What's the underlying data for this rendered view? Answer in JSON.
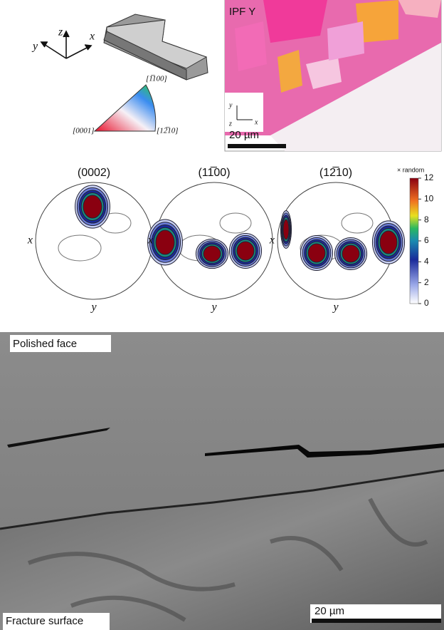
{
  "schematic": {
    "axes": [
      "z",
      "x",
      "y"
    ],
    "ipf_key": {
      "top": "[1̅100]",
      "left": "[0001]",
      "right": "[12̅10]"
    }
  },
  "ipf_map": {
    "title": "IPF Y",
    "axes": [
      "y",
      "z",
      "x"
    ],
    "scale_bar": "20 µm"
  },
  "pole_figures": [
    {
      "title": "(0002)",
      "x_label": "x",
      "y_label": "y"
    },
    {
      "title": "(11̅00)",
      "x_label": "x",
      "y_label": "y"
    },
    {
      "title": "(12̅10)",
      "x_label": "x",
      "y_label": "y"
    }
  ],
  "colorbar": {
    "label": "× random",
    "lim": [
      0,
      12
    ],
    "ticks": [
      0,
      2,
      4,
      6,
      8,
      10,
      12
    ]
  },
  "sem": {
    "top_label": "Polished face",
    "bottom_label": "Fracture surface",
    "scale_bar": "20 µm"
  }
}
